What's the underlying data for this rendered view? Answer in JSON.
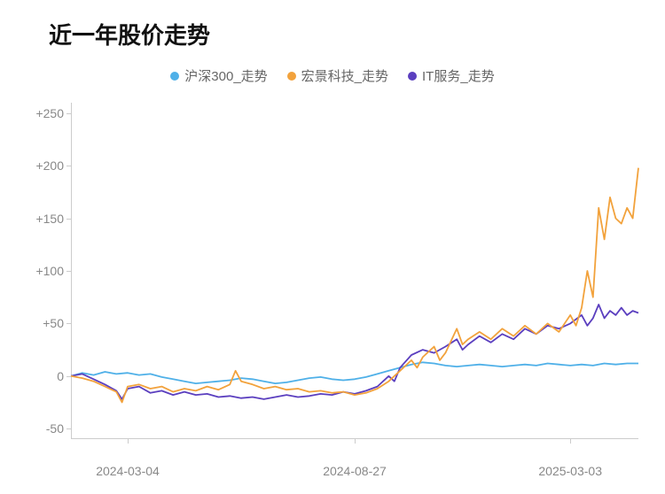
{
  "title": "近一年股价走势",
  "legend": [
    {
      "label": "沪深300_走势",
      "color": "#4fb0e8"
    },
    {
      "label": "宏景科技_走势",
      "color": "#f2a23c"
    },
    {
      "label": "IT服务_走势",
      "color": "#5b3fbf"
    }
  ],
  "chart": {
    "type": "line",
    "ylim": [
      -60,
      260
    ],
    "yticks": [
      -50,
      0,
      50,
      100,
      150,
      200,
      250
    ],
    "ytick_labels": [
      "-50",
      "0",
      "+50",
      "+100",
      "+150",
      "+200",
      "+250"
    ],
    "xlim": [
      0,
      100
    ],
    "xticks": [
      10,
      50,
      88
    ],
    "xtick_labels": [
      "2024-03-04",
      "2024-08-27",
      "2025-03-03"
    ],
    "background_color": "#ffffff",
    "axis_color": "#cccccc",
    "tick_label_color": "#888888",
    "tick_fontsize": 14,
    "title_fontsize": 26,
    "title_color": "#111111",
    "legend_fontsize": 15,
    "legend_color": "#666666",
    "line_width": 1.8,
    "series": [
      {
        "name": "沪深300_走势",
        "color": "#4fb0e8",
        "data": [
          [
            0,
            0
          ],
          [
            2,
            3
          ],
          [
            4,
            1
          ],
          [
            6,
            4
          ],
          [
            8,
            2
          ],
          [
            10,
            3
          ],
          [
            12,
            1
          ],
          [
            14,
            2
          ],
          [
            16,
            -1
          ],
          [
            18,
            -3
          ],
          [
            20,
            -5
          ],
          [
            22,
            -7
          ],
          [
            24,
            -6
          ],
          [
            26,
            -5
          ],
          [
            28,
            -4
          ],
          [
            30,
            -2
          ],
          [
            32,
            -3
          ],
          [
            34,
            -5
          ],
          [
            36,
            -7
          ],
          [
            38,
            -6
          ],
          [
            40,
            -4
          ],
          [
            42,
            -2
          ],
          [
            44,
            -1
          ],
          [
            46,
            -3
          ],
          [
            48,
            -4
          ],
          [
            50,
            -3
          ],
          [
            52,
            -1
          ],
          [
            54,
            2
          ],
          [
            56,
            5
          ],
          [
            58,
            8
          ],
          [
            60,
            11
          ],
          [
            62,
            13
          ],
          [
            64,
            12
          ],
          [
            66,
            10
          ],
          [
            68,
            9
          ],
          [
            70,
            10
          ],
          [
            72,
            11
          ],
          [
            74,
            10
          ],
          [
            76,
            9
          ],
          [
            78,
            10
          ],
          [
            80,
            11
          ],
          [
            82,
            10
          ],
          [
            84,
            12
          ],
          [
            86,
            11
          ],
          [
            88,
            10
          ],
          [
            90,
            11
          ],
          [
            92,
            10
          ],
          [
            94,
            12
          ],
          [
            96,
            11
          ],
          [
            98,
            12
          ],
          [
            100,
            12
          ]
        ]
      },
      {
        "name": "IT服务_走势",
        "color": "#5b3fbf",
        "data": [
          [
            0,
            0
          ],
          [
            2,
            2
          ],
          [
            4,
            -3
          ],
          [
            6,
            -8
          ],
          [
            8,
            -14
          ],
          [
            9,
            -22
          ],
          [
            10,
            -12
          ],
          [
            12,
            -10
          ],
          [
            14,
            -16
          ],
          [
            16,
            -14
          ],
          [
            18,
            -18
          ],
          [
            20,
            -15
          ],
          [
            22,
            -18
          ],
          [
            24,
            -17
          ],
          [
            26,
            -20
          ],
          [
            28,
            -19
          ],
          [
            30,
            -21
          ],
          [
            32,
            -20
          ],
          [
            34,
            -22
          ],
          [
            36,
            -20
          ],
          [
            38,
            -18
          ],
          [
            40,
            -20
          ],
          [
            42,
            -19
          ],
          [
            44,
            -17
          ],
          [
            46,
            -18
          ],
          [
            48,
            -15
          ],
          [
            50,
            -17
          ],
          [
            52,
            -14
          ],
          [
            54,
            -10
          ],
          [
            56,
            0
          ],
          [
            57,
            -5
          ],
          [
            58,
            8
          ],
          [
            60,
            20
          ],
          [
            62,
            25
          ],
          [
            64,
            22
          ],
          [
            66,
            28
          ],
          [
            68,
            35
          ],
          [
            69,
            25
          ],
          [
            70,
            30
          ],
          [
            72,
            38
          ],
          [
            74,
            32
          ],
          [
            76,
            40
          ],
          [
            78,
            35
          ],
          [
            80,
            45
          ],
          [
            82,
            40
          ],
          [
            84,
            48
          ],
          [
            86,
            45
          ],
          [
            88,
            50
          ],
          [
            90,
            58
          ],
          [
            91,
            48
          ],
          [
            92,
            55
          ],
          [
            93,
            68
          ],
          [
            94,
            55
          ],
          [
            95,
            62
          ],
          [
            96,
            58
          ],
          [
            97,
            65
          ],
          [
            98,
            58
          ],
          [
            99,
            62
          ],
          [
            100,
            60
          ]
        ]
      },
      {
        "name": "宏景科技_走势",
        "color": "#f2a23c",
        "data": [
          [
            0,
            0
          ],
          [
            2,
            -2
          ],
          [
            4,
            -5
          ],
          [
            6,
            -10
          ],
          [
            8,
            -15
          ],
          [
            9,
            -25
          ],
          [
            10,
            -10
          ],
          [
            12,
            -8
          ],
          [
            14,
            -12
          ],
          [
            16,
            -10
          ],
          [
            18,
            -15
          ],
          [
            20,
            -12
          ],
          [
            22,
            -14
          ],
          [
            24,
            -10
          ],
          [
            26,
            -13
          ],
          [
            28,
            -8
          ],
          [
            29,
            5
          ],
          [
            30,
            -5
          ],
          [
            32,
            -8
          ],
          [
            34,
            -12
          ],
          [
            36,
            -10
          ],
          [
            38,
            -13
          ],
          [
            40,
            -12
          ],
          [
            42,
            -15
          ],
          [
            44,
            -14
          ],
          [
            46,
            -16
          ],
          [
            48,
            -15
          ],
          [
            50,
            -18
          ],
          [
            52,
            -16
          ],
          [
            54,
            -12
          ],
          [
            56,
            -5
          ],
          [
            58,
            5
          ],
          [
            60,
            15
          ],
          [
            61,
            8
          ],
          [
            62,
            18
          ],
          [
            64,
            28
          ],
          [
            65,
            15
          ],
          [
            66,
            22
          ],
          [
            68,
            45
          ],
          [
            69,
            30
          ],
          [
            70,
            35
          ],
          [
            72,
            42
          ],
          [
            74,
            35
          ],
          [
            76,
            45
          ],
          [
            78,
            38
          ],
          [
            80,
            48
          ],
          [
            82,
            40
          ],
          [
            84,
            50
          ],
          [
            86,
            42
          ],
          [
            88,
            58
          ],
          [
            89,
            48
          ],
          [
            90,
            65
          ],
          [
            91,
            100
          ],
          [
            92,
            75
          ],
          [
            93,
            160
          ],
          [
            94,
            130
          ],
          [
            95,
            170
          ],
          [
            96,
            150
          ],
          [
            97,
            145
          ],
          [
            98,
            160
          ],
          [
            99,
            150
          ],
          [
            100,
            198
          ]
        ]
      }
    ]
  }
}
